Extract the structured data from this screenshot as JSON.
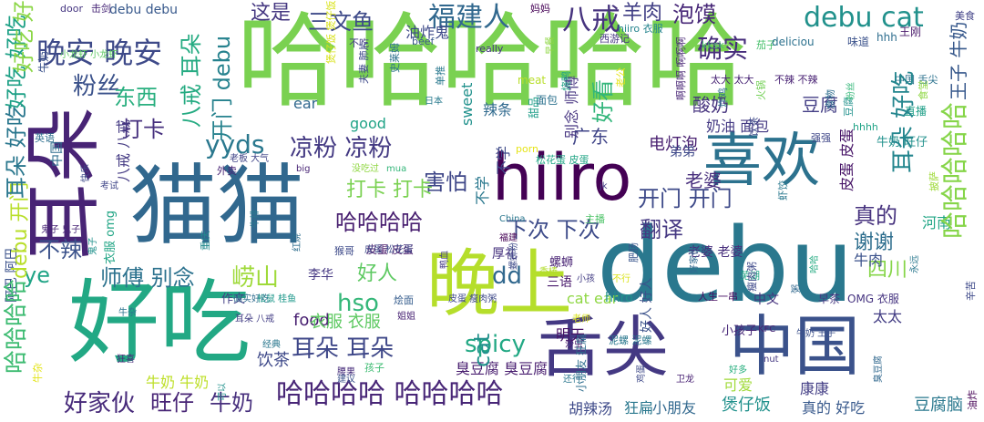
{
  "words": [
    {
      "text": "哈哈哈哈哈",
      "color": "#7ad151"
    },
    {
      "text": "猫猫",
      "color": "#31688e"
    },
    {
      "text": "debu",
      "color": "#2a788e"
    },
    {
      "text": "好吃",
      "color": "#22a884"
    },
    {
      "text": "hiiro",
      "color": "#440154"
    },
    {
      "text": "喜欢",
      "color": "#2c728e"
    },
    {
      "text": "耳朵",
      "color": "#482475"
    },
    {
      "text": "晚上",
      "color": "#b5de2b"
    },
    {
      "text": "舌尖",
      "color": "#443983"
    },
    {
      "text": "中国",
      "color": "#3b528b"
    },
    {
      "text": "八戒",
      "color": "#46337e"
    },
    {
      "text": "晚安 晚安",
      "color": "#3e4a89"
    },
    {
      "text": "三文鱼",
      "color": "#3e4a89"
    },
    {
      "text": "福建人",
      "color": "#31688e"
    },
    {
      "text": "debu cat",
      "color": "#21918c"
    },
    {
      "text": "确实",
      "color": "#472d7b"
    },
    {
      "text": "泡馍",
      "color": "#482878"
    },
    {
      "text": "羊肉",
      "color": "#424086"
    },
    {
      "text": "粉丝",
      "color": "#3b528b"
    },
    {
      "text": "东西",
      "color": "#29af7f"
    },
    {
      "text": "这是",
      "color": "#453781"
    },
    {
      "text": "yyds",
      "color": "#2a788e"
    },
    {
      "text": "凉粉 凉粉",
      "color": "#443a83"
    },
    {
      "text": "害怕",
      "color": "#3f4788"
    },
    {
      "text": "打卡",
      "color": "#46307e"
    },
    {
      "text": "打卡 打卡",
      "color": "#7ad151"
    },
    {
      "text": "哈哈哈哈",
      "color": "#481f70"
    },
    {
      "text": "不辣",
      "color": "#3b528b"
    },
    {
      "text": "下次 下次",
      "color": "#3e4c8a"
    },
    {
      "text": "开门 开门",
      "color": "#3e4a89"
    },
    {
      "text": "ye",
      "color": "#20a486"
    },
    {
      "text": "师傅 别念",
      "color": "#2c728e"
    },
    {
      "text": "好人",
      "color": "#5ec962"
    },
    {
      "text": "dd",
      "color": "#31688e"
    },
    {
      "text": "崂山",
      "color": "#9fda3a"
    },
    {
      "text": "hso",
      "color": "#35b779"
    },
    {
      "text": "spicy",
      "color": "#22a884"
    },
    {
      "text": "耳朵 耳朵",
      "color": "#3f4889"
    },
    {
      "text": "好家伙",
      "color": "#472a7a"
    },
    {
      "text": "旺仔",
      "color": "#482576"
    },
    {
      "text": "牛奶",
      "color": "#472f7d"
    },
    {
      "text": "哈哈哈哈 哈哈哈哈",
      "color": "#482677"
    },
    {
      "text": "真的",
      "color": "#46327e"
    },
    {
      "text": "谢谢",
      "color": "#2e6e8e"
    },
    {
      "text": "翻译",
      "color": "#453882"
    },
    {
      "text": "四川",
      "color": "#86d549"
    },
    {
      "text": "广东",
      "color": "#404588"
    },
    {
      "text": "酸奶",
      "color": "#46337e"
    },
    {
      "text": "豆腐",
      "color": "#433e85"
    },
    {
      "text": "奶油 面包",
      "color": "#443983"
    },
    {
      "text": "电灯泡",
      "color": "#481f70"
    },
    {
      "text": "food",
      "color": "#482071"
    },
    {
      "text": "衣服 衣服",
      "color": "#5ec962"
    },
    {
      "text": "饮茶",
      "color": "#3e4989"
    },
    {
      "text": "明天",
      "color": "#471365"
    },
    {
      "text": "臭豆腐 臭豆腐",
      "color": "#481d6f"
    },
    {
      "text": "胡辣汤",
      "color": "#3e4a89"
    },
    {
      "text": "狂扁",
      "color": "#2a788e"
    },
    {
      "text": "小朋友",
      "color": "#31688e"
    },
    {
      "text": "煲仔饭",
      "color": "#21918c"
    },
    {
      "text": "可爱",
      "color": "#a0da39"
    },
    {
      "text": "康康",
      "color": "#433e85"
    },
    {
      "text": "真的 好吃",
      "color": "#38598c"
    },
    {
      "text": "豆腐脑",
      "color": "#2a788e"
    },
    {
      "text": "太太",
      "color": "#433d84"
    },
    {
      "text": "河南",
      "color": "#21a685"
    },
    {
      "text": "牛肉",
      "color": "#3b528b"
    },
    {
      "text": "小孩子",
      "color": "#482878"
    },
    {
      "text": "李华",
      "color": "#453882"
    },
    {
      "text": "作文",
      "color": "#433e85"
    },
    {
      "text": "厚礼",
      "color": "#46327e"
    },
    {
      "text": "三语",
      "color": "#48196b"
    },
    {
      "text": "螺蛳",
      "color": "#482374"
    },
    {
      "text": "cat ear",
      "color": "#8fd744"
    },
    {
      "text": "hiiro",
      "color": "#21918c"
    },
    {
      "text": "中文",
      "color": "#46337e"
    },
    {
      "text": "早茶",
      "color": "#453781"
    },
    {
      "text": "OMG 衣服",
      "color": "#463480"
    },
    {
      "text": "老婆",
      "color": "#472e7c"
    },
    {
      "text": "老婆 老婆",
      "color": "#472e7c"
    },
    {
      "text": "弟弟",
      "color": "#3e4989"
    },
    {
      "text": "皮蛋 皮蛋",
      "color": "#481668"
    },
    {
      "text": "debu debu",
      "color": "#38598c"
    },
    {
      "text": "油炸鬼",
      "color": "#3e4a89"
    },
    {
      "text": "不吃",
      "color": "#433e85"
    },
    {
      "text": "beef",
      "color": "#39568c"
    },
    {
      "text": "really",
      "color": "#453781"
    },
    {
      "text": "meat",
      "color": "#b8de29"
    },
    {
      "text": "面包",
      "color": "#2c728e"
    },
    {
      "text": "日本",
      "color": "#297b8e"
    },
    {
      "text": "good",
      "color": "#20a386"
    },
    {
      "text": "ear",
      "color": "#31688e"
    },
    {
      "text": "sweet",
      "color": "#21918c"
    },
    {
      "text": "辣条",
      "color": "#306a8e"
    },
    {
      "text": "西游记",
      "color": "#453581"
    },
    {
      "text": "hiiro 衣服",
      "color": "#25848e"
    },
    {
      "text": "kksk",
      "color": "#4ac16d"
    },
    {
      "text": "茄子",
      "color": "#4ac16d"
    },
    {
      "text": "味道",
      "color": "#3b528b"
    },
    {
      "text": "hhh",
      "color": "#2e6e8e"
    },
    {
      "text": "hhhh",
      "color": "#20a386"
    },
    {
      "text": "王刚",
      "color": "#48186a"
    },
    {
      "text": "美食",
      "color": "#414287"
    },
    {
      "text": "直播",
      "color": "#1f9f88"
    },
    {
      "text": "牛奶 旺仔",
      "color": "#21918c"
    },
    {
      "text": "强强",
      "color": "#3f4788"
    },
    {
      "text": "不辣 不辣",
      "color": "#482173"
    },
    {
      "text": "太大 太大",
      "color": "#482475"
    },
    {
      "text": "中国 舌尖",
      "color": "#2c728e"
    },
    {
      "text": "deliciou",
      "color": "#2c718e"
    },
    {
      "text": "door",
      "color": "#453581"
    },
    {
      "text": "击剑",
      "color": "#482878"
    },
    {
      "text": "妈妈",
      "color": "#440154"
    },
    {
      "text": "小龙虾 小龙虾",
      "color": "#5ec962"
    },
    {
      "text": "英语",
      "color": "#2e6f8e"
    },
    {
      "text": "外卖",
      "color": "#482475"
    },
    {
      "text": "老板 大气",
      "color": "#404588"
    },
    {
      "text": "big",
      "color": "#482475"
    },
    {
      "text": "没吃过",
      "color": "#90d743"
    },
    {
      "text": "mua",
      "color": "#34b679"
    },
    {
      "text": "松花蛋 皮蛋",
      "color": "#21a585"
    },
    {
      "text": "porn",
      "color": "#e5e419"
    },
    {
      "text": "考试",
      "color": "#404688"
    },
    {
      "text": "鬼子 鬼子",
      "color": "#482576"
    },
    {
      "text": "猴哥",
      "color": "#3e4a89"
    },
    {
      "text": "皮蛋 松花蛋",
      "color": "#3e4989"
    },
    {
      "text": "China",
      "color": "#2a778e"
    },
    {
      "text": "福建",
      "color": "#440154"
    },
    {
      "text": "jk",
      "color": "#433e85"
    },
    {
      "text": "主播",
      "color": "#50c46a"
    },
    {
      "text": "香椿",
      "color": "#b2dd2d"
    },
    {
      "text": "小孩",
      "color": "#433d84"
    },
    {
      "text": "不行",
      "color": "#dae319"
    },
    {
      "text": "芜湖",
      "color": "#22a785"
    },
    {
      "text": "确实好吃",
      "color": "#2f6c8e"
    },
    {
      "text": "松鼠 桂鱼",
      "color": "#1f988b"
    },
    {
      "text": "烩面",
      "color": "#365d8d"
    },
    {
      "text": "皮蛋 瘦肉粥",
      "color": "#3e4989"
    },
    {
      "text": "人生一串",
      "color": "#471063"
    },
    {
      "text": "牛杂",
      "color": "#2c738e"
    },
    {
      "text": "耳朵 八戒",
      "color": "#433e85"
    },
    {
      "text": "姐姐",
      "color": "#482374"
    },
    {
      "text": "老师",
      "color": "#d8e219"
    },
    {
      "text": "经典",
      "color": "#2a778e"
    },
    {
      "text": "沙虫",
      "color": "#48186a"
    },
    {
      "text": "泥螺 泥螺",
      "color": "#2a788e"
    },
    {
      "text": "KFC",
      "color": "#482374"
    },
    {
      "text": "牛奶 王子",
      "color": "#3c508b"
    },
    {
      "text": "狂喜",
      "color": "#482878"
    },
    {
      "text": "腰果",
      "color": "#472d7b"
    },
    {
      "text": "孩子",
      "color": "#3fbc73"
    },
    {
      "text": "建议",
      "color": "#3b528b"
    },
    {
      "text": "还行",
      "color": "#2a768e"
    },
    {
      "text": "卫龙",
      "color": "#482173"
    },
    {
      "text": "好多",
      "color": "#29af7f"
    },
    {
      "text": "nut",
      "color": "#453882"
    },
    {
      "text": "牛奶 牛奶",
      "color": "#bddf26"
    },
    {
      "text": "阿巴 阿巴",
      "color": "#3b528b"
    },
    {
      "text": "哈哈哈哈",
      "color": "#3fbc73"
    },
    {
      "text": "debu 开门",
      "color": "#b8de29"
    },
    {
      "text": "耳朵 好吃",
      "color": "#2a778e"
    },
    {
      "text": "好吃 好吃",
      "color": "#1fa187"
    },
    {
      "text": "好吃 好吃",
      "color": "#8bd646"
    },
    {
      "text": "牛奶",
      "color": "#3b528b"
    },
    {
      "text": "八戒 八戒",
      "color": "#443a83"
    },
    {
      "text": "中国",
      "color": "#2e6e8e"
    },
    {
      "text": "开门 debu",
      "color": "#26828e"
    },
    {
      "text": "八戒 耳朵",
      "color": "#25ab82"
    },
    {
      "text": "好看",
      "color": "#32b67a"
    },
    {
      "text": "耳朵 好吃",
      "color": "#24868e"
    },
    {
      "text": "哈哈哈哈哈",
      "color": "#86d549"
    },
    {
      "text": "王子 牛奶",
      "color": "#38598c"
    },
    {
      "text": "皮蛋 皮蛋",
      "color": "#481668"
    },
    {
      "text": "cat",
      "color": "#21918c"
    },
    {
      "text": "衣服 omg",
      "color": "#21a585"
    },
    {
      "text": "好人 好人",
      "color": "#3b528b"
    },
    {
      "text": "不学",
      "color": "#2a788e"
    },
    {
      "text": "不学",
      "color": "#3e4a89"
    },
    {
      "text": "别念 师傅",
      "color": "#463480"
    },
    {
      "text": "甜品",
      "color": "#1f9e89"
    },
    {
      "text": "小朋友 狂扁",
      "color": "#2e6e8e"
    },
    {
      "text": "重庆",
      "color": "#23898e"
    },
    {
      "text": "肥肠",
      "color": "#39558c"
    },
    {
      "text": "饮茶",
      "color": "#3e4a89"
    },
    {
      "text": "火锅",
      "color": "#73d056"
    },
    {
      "text": "虾饺",
      "color": "#2a788e"
    },
    {
      "text": "粥",
      "color": "#31688e"
    },
    {
      "text": "瘦肉粥",
      "color": "#3e4989"
    },
    {
      "text": "豆腐",
      "color": "#21918c"
    },
    {
      "text": "食物",
      "color": "#2e6e8e"
    },
    {
      "text": "牛杂",
      "color": "#e3e418"
    },
    {
      "text": "煲仔饭 煲仔饭",
      "color": "#d8e219"
    },
    {
      "text": "夫妻 肺片",
      "color": "#3e4989"
    },
    {
      "text": "史莱姆",
      "color": "#2c718e"
    },
    {
      "text": "单推",
      "color": "#2a788e"
    },
    {
      "text": "烧鸭",
      "color": "#20a386"
    },
    {
      "text": "老公",
      "color": "#e5e419"
    },
    {
      "text": "啊啊啊 啊啊啊",
      "color": "#482475"
    },
    {
      "text": "炸鸡",
      "color": "#2e6e8e"
    },
    {
      "text": "食堂",
      "color": "#8fd744"
    },
    {
      "text": "披萨",
      "color": "#9fda3a"
    },
    {
      "text": "辛苦",
      "color": "#3e4989"
    },
    {
      "text": "油炸",
      "color": "#440154"
    },
    {
      "text": "鬼子",
      "color": "#21918c"
    },
    {
      "text": "快乐",
      "color": "#3e4a89"
    },
    {
      "text": "红烧",
      "color": "#2e6e8e"
    },
    {
      "text": "鸭血",
      "color": "#443983"
    },
    {
      "text": "螺蛳粉",
      "color": "#3e4a89"
    },
    {
      "text": "臭豆腐",
      "color": "#31688e"
    },
    {
      "text": "哈哈",
      "color": "#25ab82"
    },
    {
      "text": "粉丝",
      "color": "#35b779"
    },
    {
      "text": "鸡蛋",
      "color": "#3e4989"
    },
    {
      "text": "可以",
      "color": "#21918c"
    },
    {
      "text": "牛排",
      "color": "#2a788e"
    },
    {
      "text": "早餐",
      "color": "#8fd744"
    },
    {
      "text": "好家伙",
      "color": "#31688e"
    },
    {
      "text": "永远",
      "color": "#2a788e"
    }
  ]
}
